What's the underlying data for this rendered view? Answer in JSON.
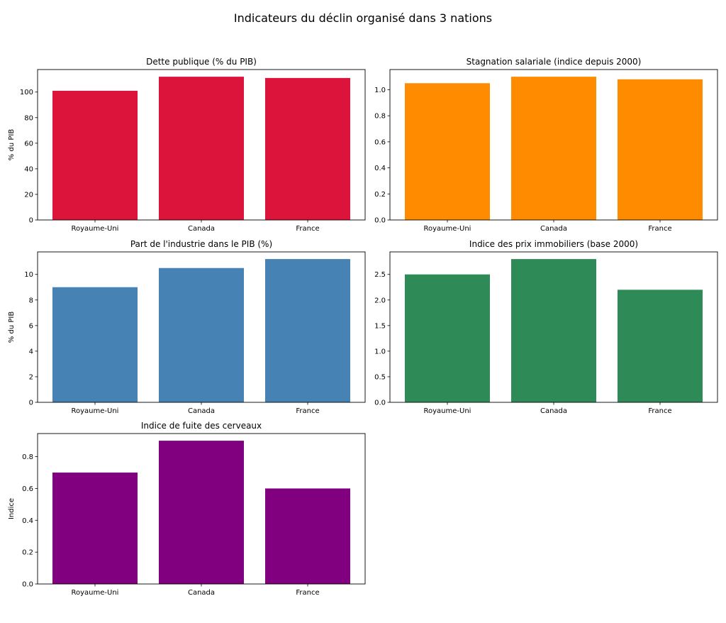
{
  "figure_title": "Indicateurs du déclin organisé dans 3 nations",
  "chart_data": [
    {
      "type": "bar",
      "title": "Dette publique (% du PIB)",
      "ylabel": "% du PIB",
      "categories": [
        "Royaume-Uni",
        "Canada",
        "France"
      ],
      "values": [
        101,
        112,
        111
      ],
      "ylim": [
        0,
        117.6
      ],
      "yticks": [
        0,
        20,
        40,
        60,
        80,
        100
      ],
      "color": "#DC143C"
    },
    {
      "type": "bar",
      "title": "Stagnation salariale (indice depuis 2000)",
      "ylabel": "",
      "categories": [
        "Royaume-Uni",
        "Canada",
        "France"
      ],
      "values": [
        1.05,
        1.1,
        1.08
      ],
      "ylim": [
        0,
        1.155
      ],
      "yticks": [
        "0.0",
        "0.2",
        "0.4",
        "0.6",
        "0.8",
        "1.0"
      ],
      "color": "#FF8C00"
    },
    {
      "type": "bar",
      "title": "Part de l'industrie dans le PIB (%)",
      "ylabel": "% du PIB",
      "categories": [
        "Royaume-Uni",
        "Canada",
        "France"
      ],
      "values": [
        9.0,
        10.5,
        11.2
      ],
      "ylim": [
        0,
        11.76
      ],
      "yticks": [
        0,
        2,
        4,
        6,
        8,
        10
      ],
      "color": "#4682B4"
    },
    {
      "type": "bar",
      "title": "Indice des prix immobiliers (base 2000)",
      "ylabel": "",
      "categories": [
        "Royaume-Uni",
        "Canada",
        "France"
      ],
      "values": [
        2.5,
        2.8,
        2.2
      ],
      "ylim": [
        0,
        2.94
      ],
      "yticks": [
        "0.0",
        "0.5",
        "1.0",
        "1.5",
        "2.0",
        "2.5"
      ],
      "color": "#2E8B57"
    },
    {
      "type": "bar",
      "title": "Indice de fuite des cerveaux",
      "ylabel": "Indice",
      "categories": [
        "Royaume-Uni",
        "Canada",
        "France"
      ],
      "values": [
        0.7,
        0.9,
        0.6
      ],
      "ylim": [
        0,
        0.945
      ],
      "yticks": [
        "0.0",
        "0.2",
        "0.4",
        "0.6",
        "0.8"
      ],
      "color": "#800080"
    }
  ]
}
